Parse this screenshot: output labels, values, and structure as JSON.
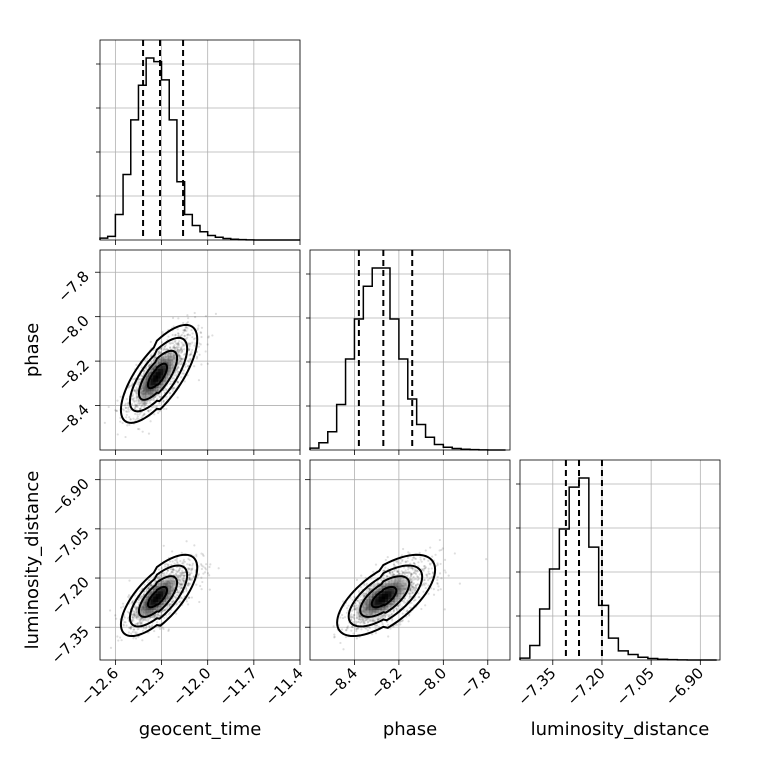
{
  "chart_data": {
    "type": "corner",
    "parameters": [
      {
        "name": "geocent_time",
        "label": "geocent_time",
        "range": [
          -12.7,
          -11.4
        ],
        "ticks": [
          "−12.6",
          "−12.3",
          "−12.0",
          "−11.7",
          "−11.4"
        ],
        "tick_values": [
          -12.6,
          -12.3,
          -12.0,
          -11.7,
          -11.4
        ],
        "quantiles": [
          -12.42,
          -12.31,
          -12.16
        ],
        "hist_bins": [
          -12.7,
          -12.65,
          -12.6,
          -12.55,
          -12.5,
          -12.45,
          -12.4,
          -12.35,
          -12.3,
          -12.25,
          -12.2,
          -12.15,
          -12.1,
          -12.05,
          -12.0,
          -11.95,
          -11.9,
          -11.85,
          -11.8,
          -11.75,
          -11.7,
          -11.65,
          -11.6,
          -11.55,
          -11.5,
          -11.45,
          -11.4
        ],
        "hist_counts": [
          0.01,
          0.02,
          0.14,
          0.36,
          0.66,
          0.85,
          1.0,
          0.98,
          0.88,
          0.66,
          0.32,
          0.14,
          0.08,
          0.045,
          0.025,
          0.015,
          0.008,
          0.004,
          0.002,
          0.001,
          0,
          0,
          0,
          0,
          0,
          0
        ]
      },
      {
        "name": "phase",
        "label": "phase",
        "range": [
          -8.6,
          -7.7
        ],
        "ticks": [
          "−8.4",
          "−8.2",
          "−8.0",
          "−7.8"
        ],
        "tick_values": [
          -8.4,
          -8.2,
          -8.0,
          -7.8
        ],
        "quantiles": [
          -8.38,
          -8.27,
          -8.14
        ],
        "hist_bins": [
          -8.6,
          -8.56,
          -8.52,
          -8.48,
          -8.44,
          -8.4,
          -8.36,
          -8.32,
          -8.28,
          -8.24,
          -8.2,
          -8.16,
          -8.12,
          -8.08,
          -8.04,
          -8.0,
          -7.96,
          -7.92,
          -7.88,
          -7.84,
          -7.8,
          -7.76,
          -7.72
        ],
        "hist_counts": [
          0.01,
          0.04,
          0.1,
          0.25,
          0.5,
          0.72,
          0.9,
          1.0,
          1.0,
          0.72,
          0.5,
          0.28,
          0.14,
          0.07,
          0.03,
          0.015,
          0.008,
          0.004,
          0.002,
          0.001,
          0,
          0
        ]
      },
      {
        "name": "luminosity_distance",
        "label": "luminosity_distance",
        "range": [
          -7.45,
          -6.84
        ],
        "ticks": [
          "−7.35",
          "−7.20",
          "−7.05",
          "−6.90"
        ],
        "tick_values": [
          -7.35,
          -7.2,
          -7.05,
          -6.9
        ],
        "quantiles": [
          -7.31,
          -7.27,
          -7.2
        ],
        "hist_bins": [
          -7.45,
          -7.42,
          -7.39,
          -7.36,
          -7.33,
          -7.3,
          -7.27,
          -7.24,
          -7.21,
          -7.18,
          -7.15,
          -7.12,
          -7.09,
          -7.06,
          -7.03,
          -7.0,
          -6.97,
          -6.94,
          -6.91,
          -6.88,
          -6.85
        ],
        "hist_counts": [
          0.01,
          0.08,
          0.28,
          0.5,
          0.72,
          0.95,
          1.0,
          0.62,
          0.3,
          0.12,
          0.05,
          0.03,
          0.015,
          0.008,
          0.004,
          0.002,
          0.001,
          0,
          0,
          0
        ]
      }
    ],
    "pairs": [
      {
        "x": "geocent_time",
        "y": "phase",
        "mean": [
          -12.33,
          -8.27
        ],
        "sd": [
          0.09,
          0.08
        ],
        "rho": 0.72
      },
      {
        "x": "geocent_time",
        "y": "luminosity_distance",
        "mean": [
          -12.33,
          -7.26
        ],
        "sd": [
          0.09,
          0.045
        ],
        "rho": 0.7
      },
      {
        "x": "phase",
        "y": "luminosity_distance",
        "mean": [
          -8.27,
          -7.26
        ],
        "sd": [
          0.08,
          0.045
        ],
        "rho": 0.65
      }
    ],
    "contour_levels_sigma": [
      0.5,
      1.0,
      1.5,
      2.0
    ],
    "grid": true
  }
}
